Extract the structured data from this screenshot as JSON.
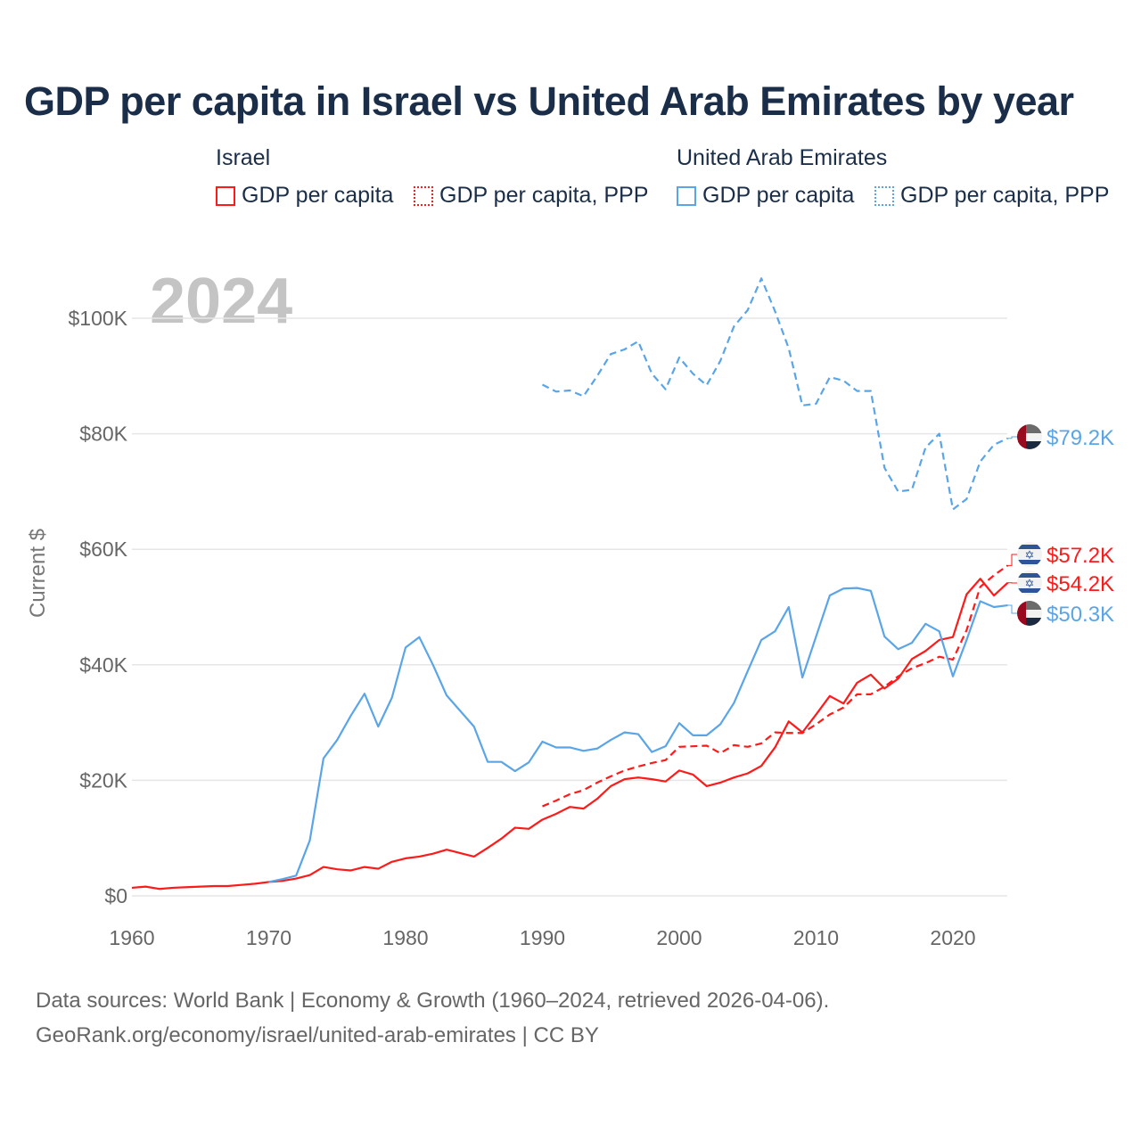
{
  "title": "GDP per capita in Israel vs United Arab Emirates by year",
  "legend": {
    "groups": [
      {
        "name": "Israel",
        "items": [
          "GDP per capita",
          "GDP per capita, PPP"
        ]
      },
      {
        "name": "United Arab Emirates",
        "items": [
          "GDP per capita",
          "GDP per capita, PPP"
        ]
      }
    ]
  },
  "colors": {
    "israel": "#ff1a1a",
    "uae": "#5aa5e8"
  },
  "footer": {
    "line1": "Data sources: World Bank | Economy & Growth (1960–2024, retrieved 2026-04-06).",
    "line2": "GeoRank.org/economy/israel/united-arab-emirates | CC BY"
  },
  "chart_data": {
    "type": "line",
    "title": "GDP per capita in Israel vs United Arab Emirates by year",
    "year_watermark": "2024",
    "ylabel": "Current $",
    "xlabel": "",
    "xlim": [
      1960,
      2024
    ],
    "ylim": [
      0,
      110000
    ],
    "x_ticks": [
      1960,
      1970,
      1980,
      1990,
      2000,
      2010,
      2020
    ],
    "x_tick_labels": [
      "1960",
      "1970",
      "1980",
      "1990",
      "2000",
      "2010",
      "2020"
    ],
    "y_ticks": [
      0,
      20000,
      40000,
      60000,
      80000,
      100000
    ],
    "y_tick_labels": [
      "$0",
      "$20K",
      "$40K",
      "$60K",
      "$80K",
      "$100K"
    ],
    "grid": true,
    "series": [
      {
        "name": "Israel GDP per capita",
        "country": "Israel",
        "style": "solid",
        "color": "#ff1a1a",
        "end_label": "$54.2K",
        "start": 1960,
        "values": [
          1.4,
          1.6,
          1.2,
          1.4,
          1.5,
          1.6,
          1.7,
          1.7,
          1.9,
          2.1,
          2.4,
          2.6,
          3.0,
          3.6,
          5.0,
          4.6,
          4.4,
          5.0,
          4.7,
          5.9,
          6.5,
          6.8,
          7.3,
          8.0,
          7.4,
          6.8,
          8.3,
          9.9,
          11.8,
          11.6,
          13.2,
          14.2,
          15.4,
          15.1,
          16.8,
          19.0,
          20.2,
          20.5,
          20.2,
          19.8,
          21.7,
          21.0,
          19.0,
          19.6,
          20.5,
          21.2,
          22.5,
          25.7,
          30.2,
          28.3,
          31.4,
          34.6,
          33.3,
          36.9,
          38.3,
          35.9,
          37.6,
          41.0,
          42.4,
          44.3,
          44.8,
          52.2,
          54.9,
          52.0,
          54.2
        ]
      },
      {
        "name": "Israel GDP per capita, PPP",
        "country": "Israel",
        "style": "dashed",
        "color": "#ff1a1a",
        "end_label": "$57.2K",
        "start": 1990,
        "values": [
          15.5,
          16.5,
          17.6,
          18.3,
          19.6,
          20.7,
          21.7,
          22.4,
          23.0,
          23.5,
          25.8,
          25.9,
          26.0,
          24.7,
          26.1,
          25.8,
          26.4,
          28.3,
          28.2,
          28.2,
          29.7,
          31.4,
          32.6,
          34.9,
          34.9,
          36.2,
          38.0,
          39.4,
          40.3,
          41.4,
          40.9,
          46.0,
          53.5,
          55.5,
          57.2
        ]
      },
      {
        "name": "United Arab Emirates GDP per capita",
        "country": "United Arab Emirates",
        "style": "solid",
        "color": "#5aa5e8",
        "end_label": "$50.3K",
        "start": 1970,
        "values": [
          2.4,
          2.9,
          3.5,
          9.6,
          23.8,
          27.0,
          31.2,
          35.0,
          29.3,
          34.3,
          43.0,
          44.8,
          40.0,
          34.7,
          32.0,
          29.3,
          23.2,
          23.2,
          21.6,
          23.1,
          26.7,
          25.7,
          25.7,
          25.1,
          25.5,
          27.0,
          28.3,
          28.0,
          24.9,
          25.9,
          29.9,
          27.8,
          27.8,
          29.7,
          33.4,
          38.9,
          44.3,
          45.8,
          50.0,
          37.8,
          44.9,
          52.0,
          53.2,
          53.3,
          52.8,
          44.9,
          42.7,
          43.8,
          47.1,
          45.8,
          38.0,
          44.3,
          51.0,
          50.0,
          50.3
        ]
      },
      {
        "name": "United Arab Emirates GDP per capita, PPP",
        "country": "United Arab Emirates",
        "style": "dashed",
        "color": "#5aa5e8",
        "end_label": "$79.2K",
        "start": 1990,
        "values": [
          88.5,
          87.3,
          87.5,
          86.5,
          90.0,
          93.8,
          94.6,
          96.0,
          90.4,
          87.7,
          93.2,
          90.4,
          88.4,
          92.6,
          98.6,
          101.4,
          106.9,
          101.2,
          94.8,
          84.9,
          85.2,
          89.8,
          89.2,
          87.4,
          87.4,
          74.1,
          70.0,
          70.3,
          77.6,
          80.0,
          66.9,
          68.7,
          75.2,
          78.1,
          79.2
        ]
      }
    ],
    "value_unit": "thousands USD"
  }
}
